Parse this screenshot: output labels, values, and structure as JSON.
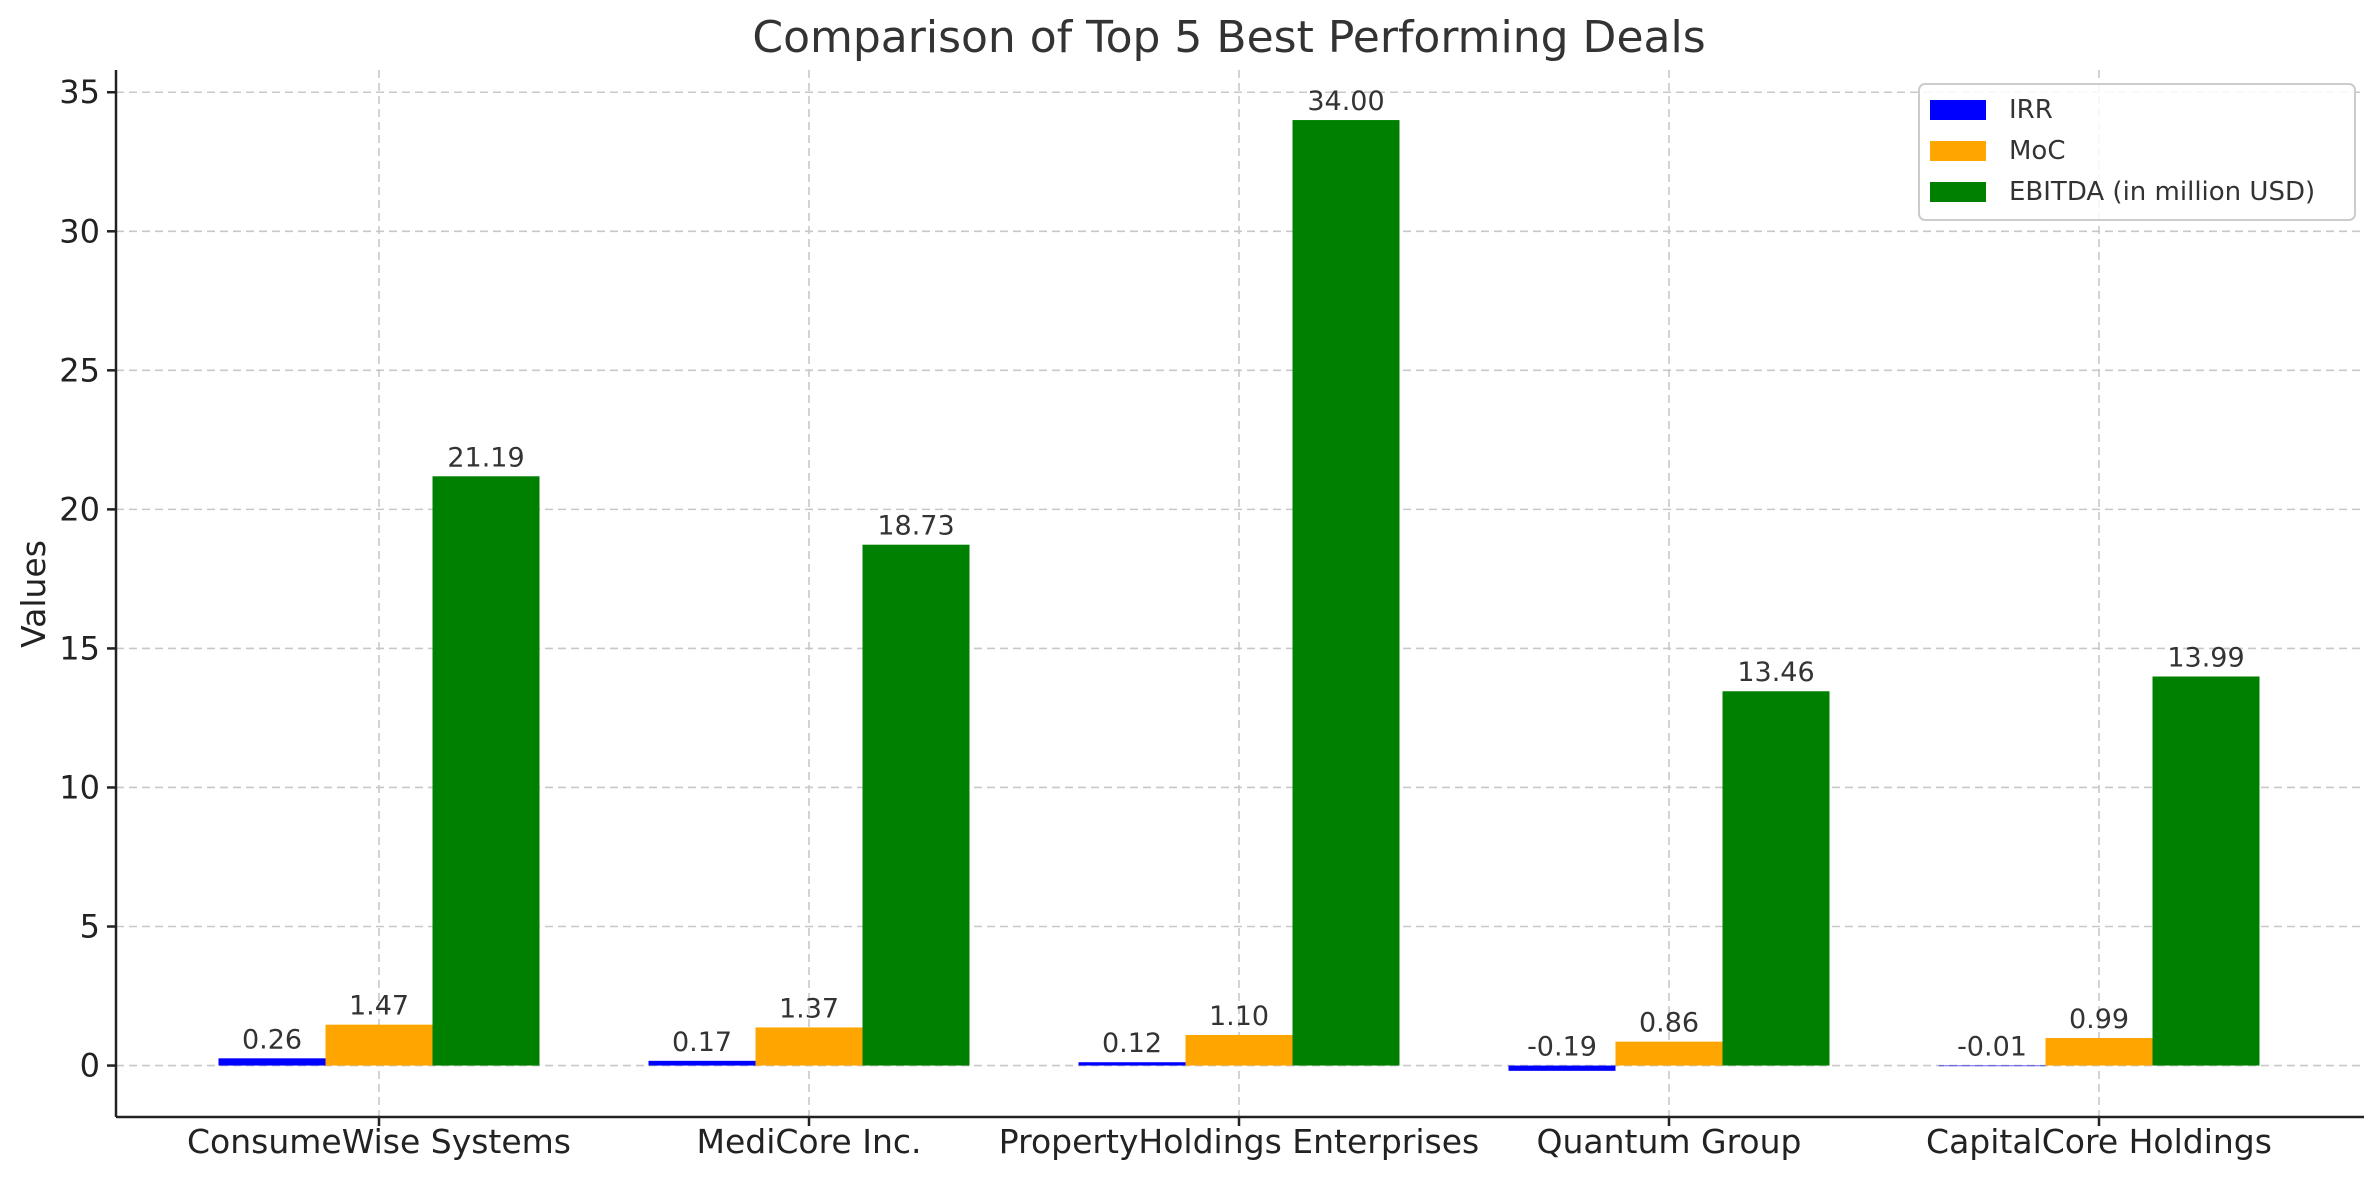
{
  "chart_data": {
    "type": "bar",
    "title": "Comparison of Top 5 Best Performing Deals",
    "xlabel": "",
    "ylabel": "Values",
    "ylim": [
      -1.85,
      35.8
    ],
    "yticks": [
      0,
      5,
      10,
      15,
      20,
      25,
      30,
      35
    ],
    "grid": true,
    "legend_position": "top-right",
    "categories": [
      "ConsumeWise Systems",
      "MediCore Inc.",
      "PropertyHoldings Enterprises",
      "Quantum Group",
      "CapitalCore Holdings"
    ],
    "series": [
      {
        "name": "IRR",
        "color": "#0000ff",
        "values": [
          0.26,
          0.17,
          0.12,
          -0.19,
          -0.01
        ],
        "labels": [
          "0.26",
          "0.17",
          "0.12",
          "-0.19",
          "-0.01"
        ]
      },
      {
        "name": "MoC",
        "color": "#ffa500",
        "values": [
          1.47,
          1.37,
          1.1,
          0.86,
          0.99
        ],
        "labels": [
          "1.47",
          "1.37",
          "1.10",
          "0.86",
          "0.99"
        ]
      },
      {
        "name": "EBITDA (in million USD)",
        "color": "#008000",
        "values": [
          21.19,
          18.73,
          34.0,
          13.46,
          13.99
        ],
        "labels": [
          "21.19",
          "18.73",
          "34.00",
          "13.46",
          "13.99"
        ]
      }
    ]
  }
}
